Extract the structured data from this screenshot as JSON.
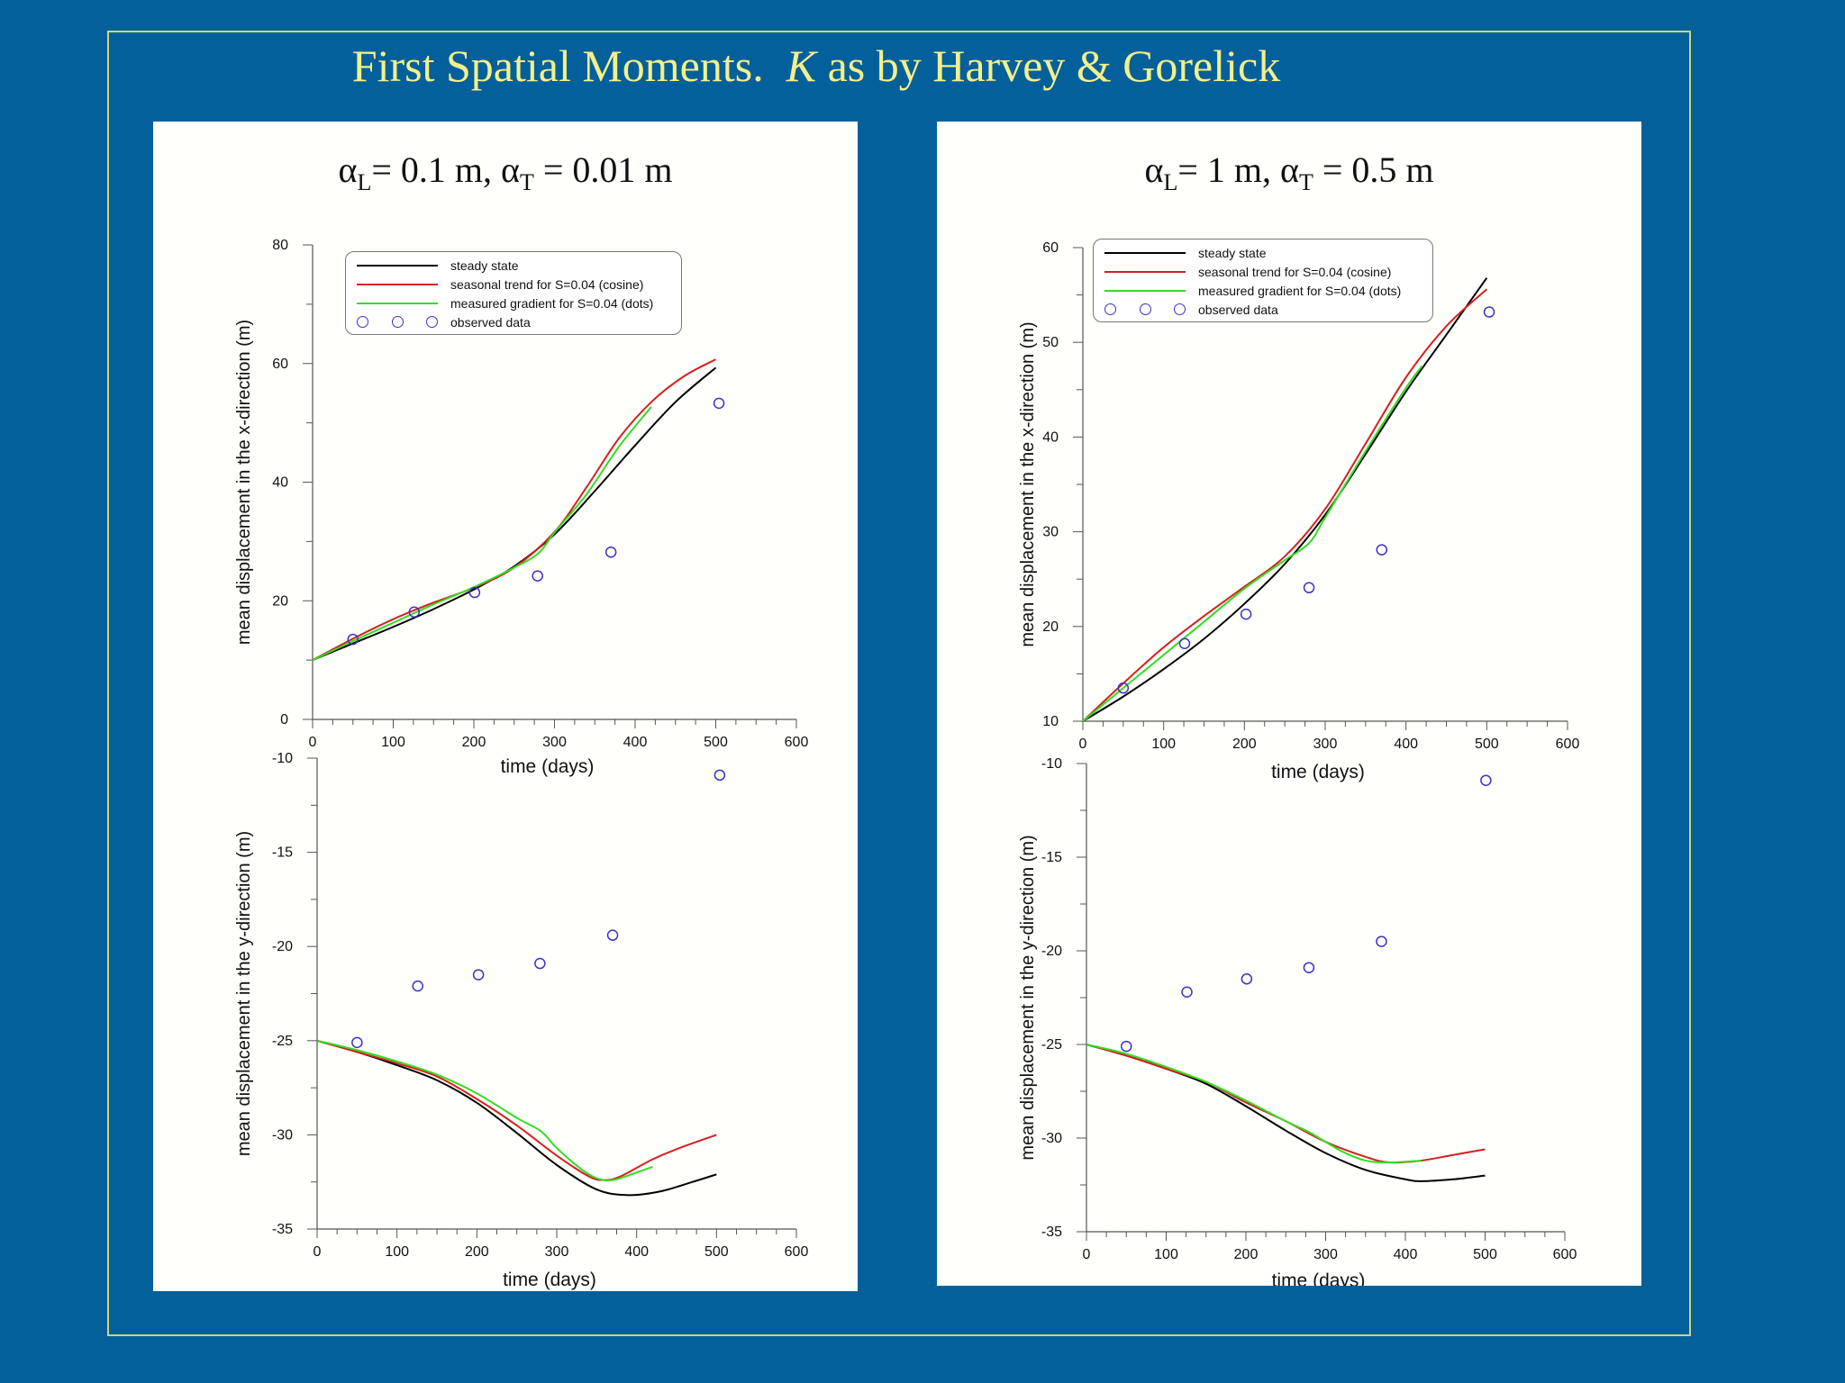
{
  "slide": {
    "title_pre": "First Spatial Moments.",
    "title_k": "K",
    "title_post": "as by Harvey & Gorelick"
  },
  "panels": [
    {
      "title": {
        "a": "α",
        "sub_l": "L",
        "mid": "= 0.1 m, α",
        "sub_t": "T",
        "end": " = 0.01 m"
      }
    },
    {
      "title": {
        "a": "α",
        "sub_l": "L",
        "mid": "= 1 m, α",
        "sub_t": "T",
        "end": " = 0.5 m"
      }
    }
  ],
  "legend": {
    "entries": [
      {
        "label": "steady state",
        "color": "#000000"
      },
      {
        "label": "seasonal trend for S=0.04  (cosine)",
        "color": "#d42020"
      },
      {
        "label": "measured gradient  for S=0.04  (dots)",
        "color": "#33dd22"
      },
      {
        "label": "observed data",
        "color": "#3a33c5",
        "marker": "circle"
      }
    ]
  },
  "chart_data": [
    {
      "type": "line",
      "panel": "left-top",
      "xlabel": "time  (days)",
      "ylabel": "mean  displacement  in  the x-direction  (m)",
      "xlim": [
        0,
        600
      ],
      "ylim": [
        0,
        80
      ],
      "xticks": [
        0,
        100,
        200,
        300,
        400,
        500,
        600
      ],
      "yticks": [
        0,
        20,
        40,
        60,
        80
      ],
      "legend": "top-left",
      "series": [
        {
          "name": "steady state",
          "color": "#000000",
          "x": [
            0,
            50,
            100,
            150,
            200,
            250,
            300,
            350,
            400,
            450,
            500
          ],
          "y": [
            10,
            12.8,
            15.6,
            18.6,
            21.9,
            25.8,
            31.2,
            38.5,
            46.2,
            53.5,
            59.3
          ]
        },
        {
          "name": "seasonal trend for S=0.04  (cosine)",
          "color": "#d42020",
          "x": [
            0,
            50,
            100,
            150,
            200,
            250,
            300,
            340,
            380,
            420,
            460,
            500
          ],
          "y": [
            10,
            13.6,
            16.9,
            19.7,
            22.2,
            25.6,
            31.6,
            39.2,
            47.4,
            53.5,
            57.8,
            60.7
          ]
        },
        {
          "name": "measured gradient  for S=0.04  (dots)",
          "color": "#33dd22",
          "x": [
            0,
            50,
            100,
            150,
            200,
            250,
            280,
            300,
            340,
            380,
            420
          ],
          "y": [
            10,
            13.2,
            16.3,
            19.4,
            22.3,
            25.6,
            28.0,
            31.5,
            38.0,
            46.0,
            52.7
          ]
        },
        {
          "name": "observed data",
          "marker": "circle",
          "color": "#3a33c5",
          "x": [
            50,
            126,
            201,
            279,
            370,
            504
          ],
          "y": [
            13.5,
            18.1,
            21.4,
            24.2,
            28.2,
            53.3
          ]
        }
      ]
    },
    {
      "type": "line",
      "panel": "left-bottom",
      "xlabel": "time  (days)",
      "ylabel": "mean  displacement  in  the  y-direction  (m)",
      "xlim": [
        0,
        600
      ],
      "ylim": [
        -35,
        -10
      ],
      "xticks": [
        0,
        100,
        200,
        300,
        400,
        500,
        600
      ],
      "yticks": [
        -35,
        -30,
        -25,
        -20,
        -15,
        -10
      ],
      "series": [
        {
          "name": "steady state",
          "color": "#000000",
          "x": [
            0,
            50,
            100,
            150,
            200,
            250,
            300,
            350,
            390,
            430,
            470,
            500
          ],
          "y": [
            -25,
            -25.6,
            -26.3,
            -27.1,
            -28.3,
            -29.9,
            -31.6,
            -32.9,
            -33.2,
            -33.0,
            -32.5,
            -32.1
          ]
        },
        {
          "name": "seasonal trend for S=0.04  (cosine)",
          "color": "#d42020",
          "x": [
            0,
            50,
            100,
            150,
            200,
            250,
            300,
            340,
            360,
            380,
            420,
            460,
            500
          ],
          "y": [
            -25,
            -25.6,
            -26.2,
            -26.9,
            -28.1,
            -29.5,
            -31.1,
            -32.2,
            -32.4,
            -32.2,
            -31.3,
            -30.6,
            -30.0
          ]
        },
        {
          "name": "measured gradient  for S=0.04  (dots)",
          "color": "#33dd22",
          "x": [
            0,
            50,
            100,
            150,
            200,
            250,
            280,
            300,
            330,
            350,
            370,
            400,
            420
          ],
          "y": [
            -25,
            -25.5,
            -26.1,
            -26.8,
            -27.8,
            -29.1,
            -29.8,
            -30.7,
            -31.8,
            -32.3,
            -32.4,
            -32.0,
            -31.7
          ]
        },
        {
          "name": "observed data",
          "marker": "circle",
          "color": "#3a33c5",
          "x": [
            50,
            126,
            202,
            279,
            370,
            504
          ],
          "y": [
            -25.1,
            -22.1,
            -21.5,
            -20.9,
            -19.4,
            -10.9
          ]
        }
      ]
    },
    {
      "type": "line",
      "panel": "right-top",
      "xlabel": "time  (days)",
      "ylabel": "mean  displacement  in  the x-direction  (m)",
      "xlim": [
        0,
        600
      ],
      "ylim": [
        10,
        60
      ],
      "xticks": [
        0,
        100,
        200,
        300,
        400,
        500,
        600
      ],
      "yticks": [
        10,
        20,
        30,
        40,
        50,
        60
      ],
      "legend": "top-left",
      "series": [
        {
          "name": "steady state",
          "color": "#000000",
          "x": [
            0,
            50,
            100,
            150,
            200,
            250,
            300,
            350,
            400,
            450,
            500
          ],
          "y": [
            10,
            12.6,
            15.5,
            18.7,
            22.4,
            26.6,
            31.8,
            38.2,
            44.8,
            50.8,
            56.8
          ]
        },
        {
          "name": "seasonal trend for S=0.04  (cosine)",
          "color": "#d42020",
          "x": [
            0,
            50,
            100,
            150,
            200,
            250,
            300,
            350,
            400,
            450,
            500
          ],
          "y": [
            10,
            14.0,
            17.8,
            21.1,
            24.2,
            27.4,
            32.4,
            39.3,
            46.3,
            51.7,
            55.6
          ]
        },
        {
          "name": "measured gradient  for S=0.04  (dots)",
          "color": "#33dd22",
          "x": [
            0,
            50,
            100,
            150,
            200,
            250,
            280,
            300,
            350,
            400,
            420
          ],
          "y": [
            10,
            13.5,
            17.0,
            20.5,
            24.0,
            27.0,
            28.8,
            31.5,
            38.5,
            45.2,
            47.5
          ]
        },
        {
          "name": "observed data",
          "marker": "circle",
          "color": "#3a33c5",
          "x": [
            50,
            126,
            202,
            280,
            370,
            503
          ],
          "y": [
            13.5,
            18.2,
            21.3,
            24.1,
            28.1,
            53.2
          ]
        }
      ]
    },
    {
      "type": "line",
      "panel": "right-bottom",
      "xlabel": "time  (days)",
      "ylabel": "mean  displacement  in  the y-direction  (m)",
      "xlim": [
        0,
        600
      ],
      "ylim": [
        -35,
        -10
      ],
      "xticks": [
        0,
        100,
        200,
        300,
        400,
        500,
        600
      ],
      "yticks": [
        -35,
        -30,
        -25,
        -20,
        -15,
        -10
      ],
      "series": [
        {
          "name": "steady state",
          "color": "#000000",
          "x": [
            0,
            50,
            100,
            150,
            200,
            250,
            300,
            350,
            400,
            420,
            460,
            500
          ],
          "y": [
            -25,
            -25.6,
            -26.3,
            -27.1,
            -28.3,
            -29.6,
            -30.8,
            -31.7,
            -32.2,
            -32.3,
            -32.2,
            -32.0
          ]
        },
        {
          "name": "seasonal trend for S=0.04  (cosine)",
          "color": "#d42020",
          "x": [
            0,
            50,
            100,
            150,
            200,
            250,
            300,
            350,
            380,
            420,
            460,
            500
          ],
          "y": [
            -25,
            -25.6,
            -26.3,
            -27.0,
            -28.1,
            -29.1,
            -30.2,
            -31.0,
            -31.3,
            -31.2,
            -30.9,
            -30.6
          ]
        },
        {
          "name": "measured gradient  for S=0.04  (dots)",
          "color": "#33dd22",
          "x": [
            0,
            50,
            100,
            150,
            200,
            250,
            280,
            320,
            350,
            380,
            420
          ],
          "y": [
            -25,
            -25.5,
            -26.2,
            -27.0,
            -28.0,
            -29.1,
            -29.7,
            -30.7,
            -31.2,
            -31.3,
            -31.2
          ]
        },
        {
          "name": "observed data",
          "marker": "circle",
          "color": "#3a33c5",
          "x": [
            50,
            126,
            201,
            279,
            370,
            501
          ],
          "y": [
            -25.1,
            -22.2,
            -21.5,
            -20.9,
            -19.5,
            -10.9
          ]
        }
      ]
    }
  ]
}
